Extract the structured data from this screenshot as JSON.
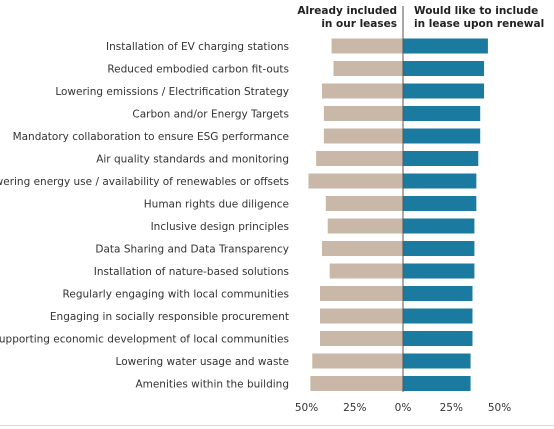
{
  "chart_data": {
    "type": "bar",
    "orientation": "diverging-horizontal",
    "series": [
      {
        "name": "Already included in our leases",
        "name_lines": [
          "Already included",
          "in our leases"
        ],
        "color": "#c9b8a8",
        "direction": "left",
        "values": [
          37,
          36,
          42,
          41,
          41,
          45,
          49,
          40,
          39,
          42,
          38,
          43,
          43,
          43,
          47,
          48
        ]
      },
      {
        "name": "Would like to include in lease upon renewal",
        "name_lines": [
          "Would like to include",
          "in lease upon renewal"
        ],
        "color": "#1a7aa0",
        "direction": "right",
        "values": [
          44,
          42,
          42,
          40,
          40,
          39,
          38,
          38,
          37,
          37,
          37,
          36,
          36,
          36,
          35,
          35
        ]
      }
    ],
    "categories": [
      "Installation of EV charging stations",
      "Reduced embodied carbon fit-outs",
      "Lowering emissions / Electrification Strategy",
      "Carbon and/or Energy Targets",
      "Mandatory collaboration to ensure ESG performance",
      "Air quality standards and monitoring",
      "Lowering energy use / availability of renewables or offsets",
      "Human rights due diligence",
      "Inclusive design principles",
      "Data Sharing and Data Transparency",
      "Installation of nature-based solutions",
      "Regularly engaging with local communities",
      "Engaging in socially responsible procurement",
      "Supporting economic development of local communities",
      "Lowering water usage and waste",
      "Amenities within the building"
    ],
    "xlim": [
      -50,
      50
    ],
    "xticks": [
      {
        "value": -50,
        "label": "50%"
      },
      {
        "value": -25,
        "label": "25%"
      },
      {
        "value": 0,
        "label": "0%"
      },
      {
        "value": 25,
        "label": "25%"
      },
      {
        "value": 50,
        "label": "50%"
      }
    ],
    "grid": false,
    "legend": "top"
  }
}
